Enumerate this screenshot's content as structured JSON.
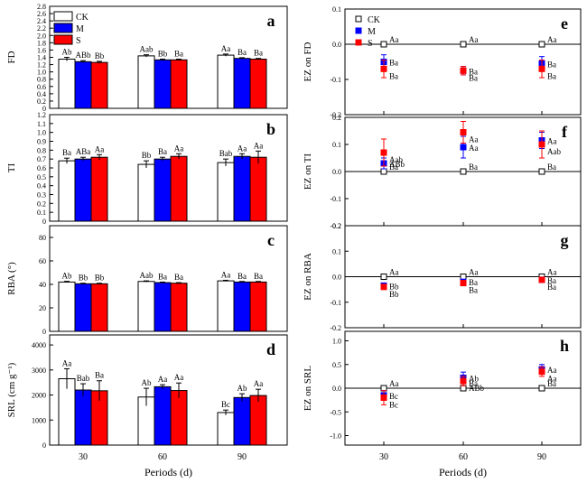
{
  "colors": {
    "CK": "#ffffff",
    "M": "#0000ff",
    "S": "#ff0000",
    "axis": "#000000",
    "zeroline": "#000000"
  },
  "chart_data": [
    {
      "id": "a",
      "type": "bar",
      "panel_label": "a",
      "ylabel": "FD",
      "categories": [
        "30",
        "60",
        "90"
      ],
      "ylim": [
        0,
        2.8
      ],
      "yticks": [
        "0",
        "0.2",
        "0.4",
        "0.6",
        "0.8",
        "1.0",
        "1.2",
        "1.4",
        "1.6",
        "1.8",
        "2.0",
        "2.2",
        "2.4",
        "2.6",
        "2.8"
      ],
      "ytick_values": [
        0,
        0.2,
        0.4,
        0.6,
        0.8,
        1.0,
        1.2,
        1.4,
        1.6,
        1.8,
        2.0,
        2.2,
        2.4,
        2.6,
        2.8
      ],
      "legend": [
        "CK",
        "M",
        "S"
      ],
      "legend_position": "top-left",
      "series": [
        {
          "name": "CK",
          "values": [
            1.35,
            1.44,
            1.46
          ],
          "errors": [
            0.05,
            0.03,
            0.03
          ],
          "labels": [
            "Ab",
            "Aab",
            "Aa"
          ]
        },
        {
          "name": "M",
          "values": [
            1.28,
            1.33,
            1.37
          ],
          "errors": [
            0.03,
            0.02,
            0.02
          ],
          "labels": [
            "ABb",
            "Bb",
            "Ba"
          ]
        },
        {
          "name": "S",
          "values": [
            1.26,
            1.33,
            1.35
          ],
          "errors": [
            0.03,
            0.02,
            0.02
          ],
          "labels": [
            "Bb",
            "Ba",
            "Ba"
          ]
        }
      ]
    },
    {
      "id": "b",
      "type": "bar",
      "panel_label": "b",
      "ylabel": "TI",
      "categories": [
        "30",
        "60",
        "90"
      ],
      "ylim": [
        0,
        1.2
      ],
      "yticks": [
        "0",
        "0.1",
        "0.2",
        "0.3",
        "0.4",
        "0.5",
        "0.6",
        "0.7",
        "0.8",
        "0.9",
        "1.0",
        "1.1",
        "1.2"
      ],
      "ytick_values": [
        0,
        0.1,
        0.2,
        0.3,
        0.4,
        0.5,
        0.6,
        0.7,
        0.8,
        0.9,
        1.0,
        1.1,
        1.2
      ],
      "series": [
        {
          "name": "CK",
          "values": [
            0.68,
            0.64,
            0.66
          ],
          "errors": [
            0.03,
            0.04,
            0.04
          ],
          "labels": [
            "Ba",
            "Bb",
            "Bab"
          ]
        },
        {
          "name": "M",
          "values": [
            0.7,
            0.7,
            0.73
          ],
          "errors": [
            0.02,
            0.02,
            0.03
          ],
          "labels": [
            "ABa",
            "Ba",
            "Aa"
          ]
        },
        {
          "name": "S",
          "values": [
            0.72,
            0.73,
            0.72
          ],
          "errors": [
            0.03,
            0.03,
            0.07
          ],
          "labels": [
            "Aa",
            "Aa",
            "Aa"
          ]
        }
      ]
    },
    {
      "id": "c",
      "type": "bar",
      "panel_label": "c",
      "ylabel": "RBA (°)",
      "categories": [
        "30",
        "60",
        "90"
      ],
      "ylim": [
        0,
        90
      ],
      "yticks": [
        "0",
        "20",
        "40",
        "60",
        "80"
      ],
      "ytick_values": [
        0,
        20,
        40,
        60,
        80
      ],
      "series": [
        {
          "name": "CK",
          "values": [
            42,
            42.5,
            43
          ],
          "errors": [
            0.6,
            0.5,
            0.5
          ],
          "labels": [
            "Ab",
            "Aab",
            "Aa"
          ]
        },
        {
          "name": "M",
          "values": [
            40.5,
            41.5,
            42
          ],
          "errors": [
            0.5,
            0.5,
            0.5
          ],
          "labels": [
            "Bb",
            "Ba",
            "Ba"
          ]
        },
        {
          "name": "S",
          "values": [
            40.5,
            41,
            42
          ],
          "errors": [
            0.5,
            0.5,
            0.5
          ],
          "labels": [
            "Bb",
            "Ba",
            "Ba"
          ]
        }
      ]
    },
    {
      "id": "d",
      "type": "bar",
      "panel_label": "d",
      "ylabel": "SRL (cm g⁻¹)",
      "xlabel": "Periods (d)",
      "categories": [
        "30",
        "60",
        "90"
      ],
      "ylim": [
        0,
        4400
      ],
      "yticks": [
        "0",
        "1000",
        "2000",
        "3000",
        "4000"
      ],
      "ytick_values": [
        0,
        1000,
        2000,
        3000,
        4000
      ],
      "series": [
        {
          "name": "CK",
          "values": [
            2650,
            1920,
            1300
          ],
          "errors": [
            400,
            350,
            100
          ],
          "labels": [
            "Aa",
            "Ab",
            "Bc"
          ]
        },
        {
          "name": "M",
          "values": [
            2200,
            2330,
            1900
          ],
          "errors": [
            250,
            80,
            150
          ],
          "labels": [
            "Bab",
            "Aa",
            "Ab"
          ]
        },
        {
          "name": "S",
          "values": [
            2170,
            2180,
            1980
          ],
          "errors": [
            400,
            300,
            250
          ],
          "labels": [
            "Ba",
            "Aa",
            "Aa"
          ]
        }
      ]
    },
    {
      "id": "e",
      "type": "scatter",
      "panel_label": "e",
      "ylabel": "EZ on FD",
      "categories": [
        "30",
        "60",
        "90"
      ],
      "ylim": [
        -0.2,
        0.1
      ],
      "yticks": [
        "0.1",
        "0.0",
        "-0.1",
        "-0.2"
      ],
      "ytick_values": [
        0.1,
        0.0,
        -0.1,
        -0.2
      ],
      "legend": [
        "CK",
        "M",
        "S"
      ],
      "legend_position": "top-left",
      "series": [
        {
          "name": "CK",
          "values": [
            0.0,
            0.0,
            0.0
          ],
          "errors": [
            0,
            0,
            0
          ],
          "labels": [
            "Aa",
            "Aa",
            "Aa"
          ]
        },
        {
          "name": "M",
          "values": [
            -0.05,
            -0.075,
            -0.055
          ],
          "errors": [
            0.02,
            0.012,
            0.02
          ],
          "labels": [
            "Ba",
            "Ba",
            "Ba"
          ]
        },
        {
          "name": "S",
          "values": [
            -0.07,
            -0.075,
            -0.07
          ],
          "errors": [
            0.025,
            0.012,
            0.025
          ],
          "labels": [
            "Ba",
            "Ba",
            "Ba"
          ]
        }
      ]
    },
    {
      "id": "f",
      "type": "scatter",
      "panel_label": "f",
      "ylabel": "EZ on TI",
      "categories": [
        "30",
        "60",
        "90"
      ],
      "ylim": [
        -0.2,
        0.2
      ],
      "yticks": [
        "0.2",
        "0.1",
        "0.0",
        "-0.1",
        "-0.2"
      ],
      "ytick_values": [
        0.2,
        0.1,
        0.0,
        -0.1,
        -0.2
      ],
      "series": [
        {
          "name": "CK",
          "values": [
            0.0,
            0.0,
            0.0
          ],
          "errors": [
            0,
            0,
            0
          ],
          "labels": [
            "Ba",
            "Ba",
            "Ba"
          ]
        },
        {
          "name": "M",
          "values": [
            0.03,
            0.09,
            0.115
          ],
          "errors": [
            0.02,
            0.04,
            0.03
          ],
          "labels": [
            "ABb",
            "Aa",
            "Aa"
          ]
        },
        {
          "name": "S",
          "values": [
            0.07,
            0.145,
            0.1
          ],
          "errors": [
            0.05,
            0.04,
            0.05
          ],
          "labels": [
            "Aab",
            "Aa",
            "Aab"
          ]
        }
      ]
    },
    {
      "id": "g",
      "type": "scatter",
      "panel_label": "g",
      "ylabel": "EZ on RBA",
      "categories": [
        "30",
        "60",
        "90"
      ],
      "ylim": [
        -0.2,
        0.2
      ],
      "yticks": [
        "0.2",
        "0.1",
        "0.0",
        "-0.1",
        "-0.2"
      ],
      "ytick_values": [
        0.2,
        0.1,
        0.0,
        -0.1,
        -0.2
      ],
      "series": [
        {
          "name": "CK",
          "values": [
            0.0,
            0.0,
            0.0
          ],
          "errors": [
            0,
            0,
            0
          ],
          "labels": [
            "Aa",
            "Aa",
            "Aa"
          ]
        },
        {
          "name": "M",
          "values": [
            -0.035,
            -0.02,
            -0.012
          ],
          "errors": [
            0.008,
            0.008,
            0.008
          ],
          "labels": [
            "Bb",
            "Ba",
            "Ba"
          ]
        },
        {
          "name": "S",
          "values": [
            -0.04,
            -0.025,
            -0.012
          ],
          "errors": [
            0.008,
            0.008,
            0.008
          ],
          "labels": [
            "Bb",
            "Ba",
            "Ba"
          ]
        }
      ]
    },
    {
      "id": "h",
      "type": "scatter",
      "panel_label": "h",
      "ylabel": "EZ on SRL",
      "xlabel": "Periods (d)",
      "categories": [
        "30",
        "60",
        "90"
      ],
      "ylim": [
        -1.2,
        1.2
      ],
      "yticks": [
        "1.0",
        "0.5",
        "0.0",
        "-0.5",
        "-1.0"
      ],
      "ytick_values": [
        1.0,
        0.5,
        0.0,
        -0.5,
        -1.0
      ],
      "series": [
        {
          "name": "CK",
          "values": [
            0.0,
            0.0,
            0.0
          ],
          "errors": [
            0,
            0,
            0
          ],
          "labels": [
            "Aa",
            "Ba",
            "Ba"
          ]
        },
        {
          "name": "M",
          "values": [
            -0.15,
            0.22,
            0.4
          ],
          "errors": [
            0.1,
            0.12,
            0.1
          ],
          "labels": [
            "Bc",
            "Ab",
            "Aa"
          ]
        },
        {
          "name": "S",
          "values": [
            -0.2,
            0.15,
            0.35
          ],
          "errors": [
            0.15,
            0.1,
            0.1
          ],
          "labels": [
            "Bc",
            "ABb",
            "Aa"
          ]
        }
      ]
    }
  ]
}
